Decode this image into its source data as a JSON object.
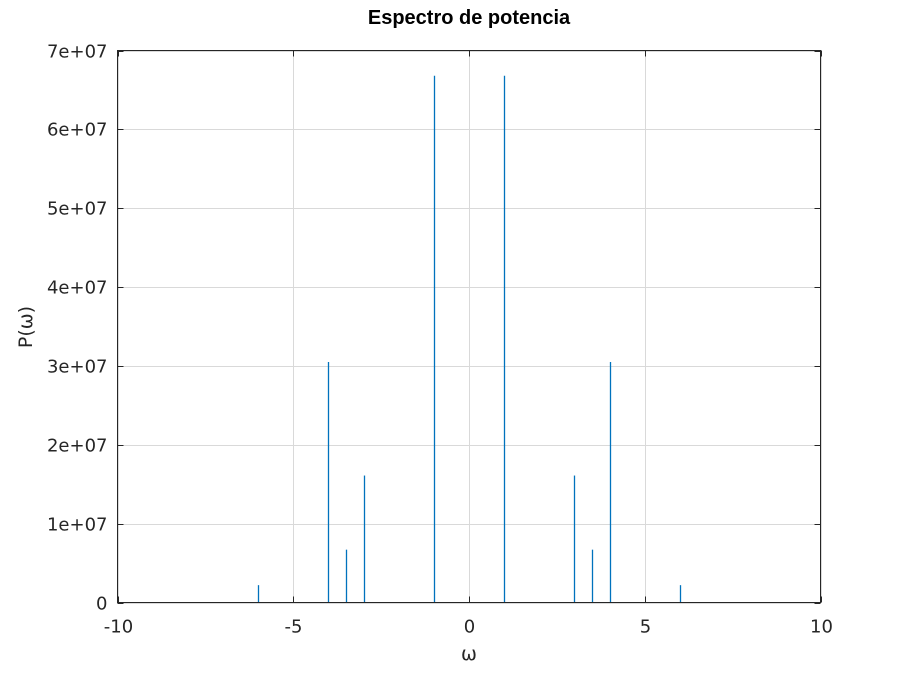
{
  "chart_data": {
    "type": "line",
    "title": "Espectro de potencia",
    "xlabel": "ω",
    "ylabel": "P(ω)",
    "xlim": [
      -10,
      10
    ],
    "ylim": [
      0,
      70000000
    ],
    "xticks": [
      -10,
      -5,
      0,
      5,
      10
    ],
    "xtick_labels": [
      "-10",
      "-5",
      "0",
      "5",
      "10"
    ],
    "yticks": [
      0,
      10000000,
      20000000,
      30000000,
      40000000,
      50000000,
      60000000,
      70000000
    ],
    "ytick_labels": [
      "0",
      "1e+07",
      "2e+07",
      "3e+07",
      "4e+07",
      "5e+07",
      "6e+07",
      "7e+07"
    ],
    "grid": true,
    "series": [
      {
        "color": "#0072bd",
        "spikes": [
          {
            "x": -6,
            "y": 2200000
          },
          {
            "x": -4,
            "y": 30500000
          },
          {
            "x": -3.5,
            "y": 6700000
          },
          {
            "x": -3,
            "y": 16100000
          },
          {
            "x": -1,
            "y": 66800000
          },
          {
            "x": 1,
            "y": 66800000
          },
          {
            "x": 3,
            "y": 16100000
          },
          {
            "x": 3.5,
            "y": 6700000
          },
          {
            "x": 4,
            "y": 30500000
          },
          {
            "x": 6,
            "y": 2200000
          }
        ],
        "baseline_range": [
          -8,
          8
        ]
      }
    ]
  }
}
